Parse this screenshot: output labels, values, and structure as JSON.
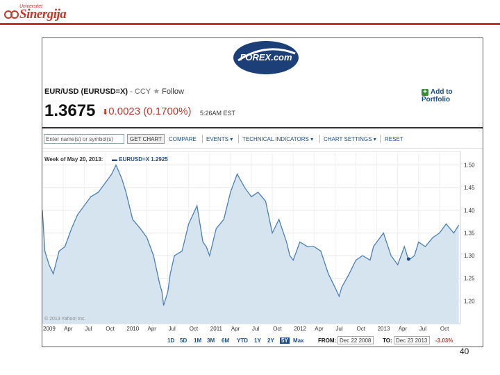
{
  "slide": {
    "logo_small": "Universitet",
    "logo_main": "Sinergija",
    "page_number": "40"
  },
  "brand": {
    "forex_logo": "FOREX.com"
  },
  "quote": {
    "title": "EUR/USD (EURUSD=X)",
    "dash": "-",
    "ccy": "CCY",
    "follow": "Follow",
    "add_portfolio": "Add to Portfolio",
    "price": "1.3675",
    "change": "0.0023 (0.1700%)",
    "time": "5:26AM EST"
  },
  "toolbar": {
    "symbol_placeholder": "Enter name(s) or symbol(s)",
    "get_chart": "GET CHART",
    "compare": "COMPARE",
    "events": "EVENTS ▾",
    "technical": "TECHNICAL INDICATORS ▾",
    "settings": "CHART SETTINGS ▾",
    "reset": "RESET"
  },
  "chart_info": {
    "week_label": "Week of May 20, 2013:",
    "series_label": "EURUSD=X 1.2925",
    "copyright": "© 2013 Yahoo! Inc."
  },
  "chart_data": {
    "type": "area",
    "series": [
      {
        "name": "EURUSD=X",
        "values": [
          [
            2009.0,
            1.4
          ],
          [
            2009.03,
            1.31
          ],
          [
            2009.08,
            1.28
          ],
          [
            2009.13,
            1.26
          ],
          [
            2009.2,
            1.31
          ],
          [
            2009.27,
            1.32
          ],
          [
            2009.35,
            1.36
          ],
          [
            2009.42,
            1.39
          ],
          [
            2009.5,
            1.41
          ],
          [
            2009.58,
            1.43
          ],
          [
            2009.67,
            1.44
          ],
          [
            2009.75,
            1.46
          ],
          [
            2009.83,
            1.48
          ],
          [
            2009.88,
            1.5
          ],
          [
            2009.95,
            1.47
          ],
          [
            2010.0,
            1.44
          ],
          [
            2010.08,
            1.38
          ],
          [
            2010.17,
            1.36
          ],
          [
            2010.25,
            1.34
          ],
          [
            2010.33,
            1.3
          ],
          [
            2010.4,
            1.24
          ],
          [
            2010.43,
            1.22
          ],
          [
            2010.45,
            1.19
          ],
          [
            2010.5,
            1.22
          ],
          [
            2010.53,
            1.26
          ],
          [
            2010.58,
            1.3
          ],
          [
            2010.67,
            1.31
          ],
          [
            2010.75,
            1.37
          ],
          [
            2010.8,
            1.39
          ],
          [
            2010.85,
            1.41
          ],
          [
            2010.92,
            1.33
          ],
          [
            2010.96,
            1.32
          ],
          [
            2011.0,
            1.3
          ],
          [
            2011.08,
            1.36
          ],
          [
            2011.17,
            1.38
          ],
          [
            2011.25,
            1.44
          ],
          [
            2011.33,
            1.48
          ],
          [
            2011.42,
            1.45
          ],
          [
            2011.5,
            1.43
          ],
          [
            2011.58,
            1.44
          ],
          [
            2011.67,
            1.42
          ],
          [
            2011.75,
            1.35
          ],
          [
            2011.83,
            1.38
          ],
          [
            2011.92,
            1.33
          ],
          [
            2011.96,
            1.3
          ],
          [
            2012.0,
            1.29
          ],
          [
            2012.08,
            1.33
          ],
          [
            2012.17,
            1.32
          ],
          [
            2012.25,
            1.32
          ],
          [
            2012.33,
            1.31
          ],
          [
            2012.42,
            1.26
          ],
          [
            2012.5,
            1.23
          ],
          [
            2012.55,
            1.21
          ],
          [
            2012.58,
            1.23
          ],
          [
            2012.67,
            1.26
          ],
          [
            2012.75,
            1.29
          ],
          [
            2012.83,
            1.3
          ],
          [
            2012.92,
            1.29
          ],
          [
            2012.96,
            1.32
          ],
          [
            2013.0,
            1.33
          ],
          [
            2013.08,
            1.35
          ],
          [
            2013.17,
            1.3
          ],
          [
            2013.25,
            1.28
          ],
          [
            2013.33,
            1.32
          ],
          [
            2013.38,
            1.29
          ],
          [
            2013.45,
            1.3
          ],
          [
            2013.5,
            1.33
          ],
          [
            2013.58,
            1.32
          ],
          [
            2013.67,
            1.34
          ],
          [
            2013.75,
            1.35
          ],
          [
            2013.83,
            1.37
          ],
          [
            2013.92,
            1.35
          ],
          [
            2013.98,
            1.3675
          ]
        ]
      }
    ],
    "marker": [
      2013.38,
      1.2925
    ],
    "x_ticks": [
      "2009",
      "Apr",
      "Jul",
      "Oct",
      "2010",
      "Apr",
      "Jul",
      "Oct",
      "2011",
      "Apr",
      "Jul",
      "Oct",
      "2012",
      "Apr",
      "Jul",
      "Oct",
      "2013",
      "Apr",
      "Jul",
      "Oct"
    ],
    "y_ticks": [
      "1.50",
      "1.45",
      "1.40",
      "1.35",
      "1.30",
      "1.25",
      "1.20"
    ],
    "ylim": [
      1.15,
      1.53
    ],
    "xlim": [
      2009.0,
      2014.0
    ],
    "grid": true,
    "colors": {
      "line": "#4a7fb5",
      "fill": "#d6e4f0",
      "marker": "#1d4d8a"
    }
  },
  "range_bar": {
    "ranges": [
      "1D",
      "5D",
      "1M",
      "3M",
      "6M",
      "YTD",
      "1Y",
      "2Y",
      "5Y",
      "Max"
    ],
    "active": "5Y",
    "from_label": "FROM:",
    "from_value": "Dec 22 2008",
    "to_label": "TO:",
    "to_value": "Dec 23 2013",
    "pct_change": "-3.03%"
  }
}
